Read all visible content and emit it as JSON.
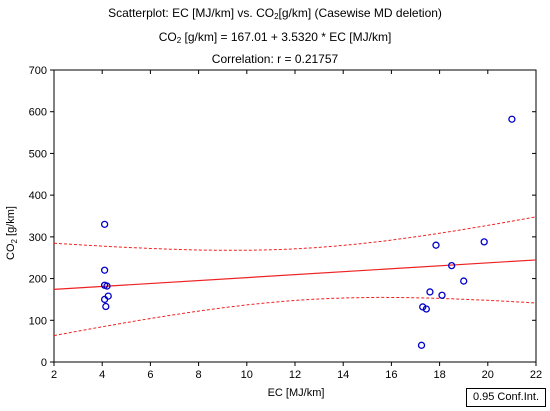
{
  "chart_data": {
    "type": "scatter",
    "title": "Scatterplot: EC [MJ/km] vs. CO2 [g/km] (Casewise MD deletion)",
    "subtitle_equation": "CO2 [g/km] = 167.01 + 3.5320 * EC [MJ/km]",
    "subtitle_correlation": "Correlation: r = 0.21757",
    "xlabel": "EC [MJ/km]",
    "ylabel": "CO2 [g/km]",
    "xlim": [
      2,
      22
    ],
    "ylim": [
      0,
      700
    ],
    "x_ticks": [
      2,
      4,
      6,
      8,
      10,
      12,
      14,
      16,
      18,
      20,
      22
    ],
    "y_ticks": [
      0,
      100,
      200,
      300,
      400,
      500,
      600,
      700
    ],
    "grid": false,
    "regression": {
      "intercept": 167.01,
      "slope": 3.532
    },
    "confidence_band_label": "0.95 Conf.Int.",
    "points": [
      {
        "x": 4.1,
        "y": 330
      },
      {
        "x": 4.1,
        "y": 220
      },
      {
        "x": 4.1,
        "y": 184
      },
      {
        "x": 4.2,
        "y": 182
      },
      {
        "x": 4.1,
        "y": 150
      },
      {
        "x": 4.25,
        "y": 158
      },
      {
        "x": 4.15,
        "y": 133
      },
      {
        "x": 17.3,
        "y": 132
      },
      {
        "x": 17.45,
        "y": 127
      },
      {
        "x": 17.6,
        "y": 168
      },
      {
        "x": 17.85,
        "y": 280
      },
      {
        "x": 18.1,
        "y": 160
      },
      {
        "x": 18.5,
        "y": 231
      },
      {
        "x": 19.0,
        "y": 194
      },
      {
        "x": 19.85,
        "y": 288
      },
      {
        "x": 17.25,
        "y": 40
      },
      {
        "x": 21.0,
        "y": 582
      }
    ],
    "colors": {
      "points": "#0000cc",
      "line": "#ee2222",
      "axis": "#000000"
    }
  }
}
